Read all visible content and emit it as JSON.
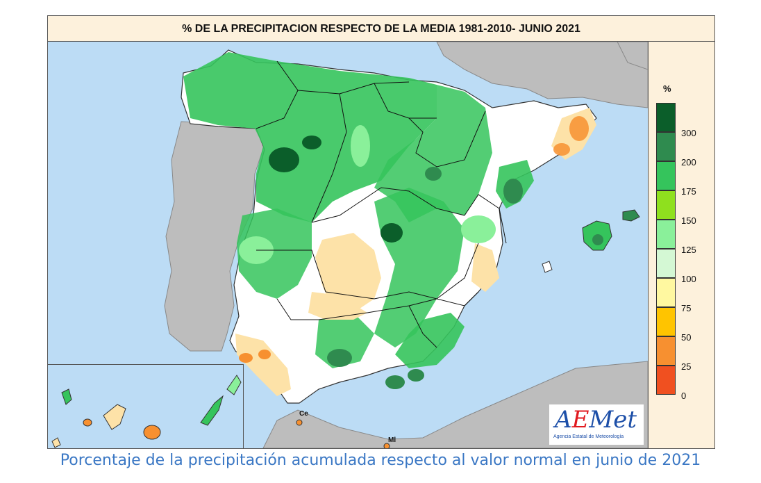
{
  "title": "% DE LA PRECIPITACION RESPECTO DE LA MEDIA 1981-2010- JUNIO 2021",
  "legend": {
    "unit": "%",
    "bins": [
      {
        "label": "300",
        "color": "#0b5e2a"
      },
      {
        "label": "200",
        "color": "#2f8b4f"
      },
      {
        "label": "175",
        "color": "#35c45c"
      },
      {
        "label": "150",
        "color": "#8fe01e"
      },
      {
        "label": "125",
        "color": "#8af09a"
      },
      {
        "label": "100",
        "color": "#d4f8d4"
      },
      {
        "label": "75",
        "color": "#fff8a0"
      },
      {
        "label": "50",
        "color": "#ffc400"
      },
      {
        "label": "25",
        "color": "#f79030"
      },
      {
        "label": "0",
        "color": "#f05020"
      }
    ]
  },
  "cities": {
    "ceuta": "Ce",
    "melilla": "Ml"
  },
  "logo": {
    "name": "AEMet",
    "subtitle": "Agencia Estatal de Meteorología"
  },
  "caption": "Porcentaje de la precipitación acumulada respecto al valor normal en junio de 2021"
}
